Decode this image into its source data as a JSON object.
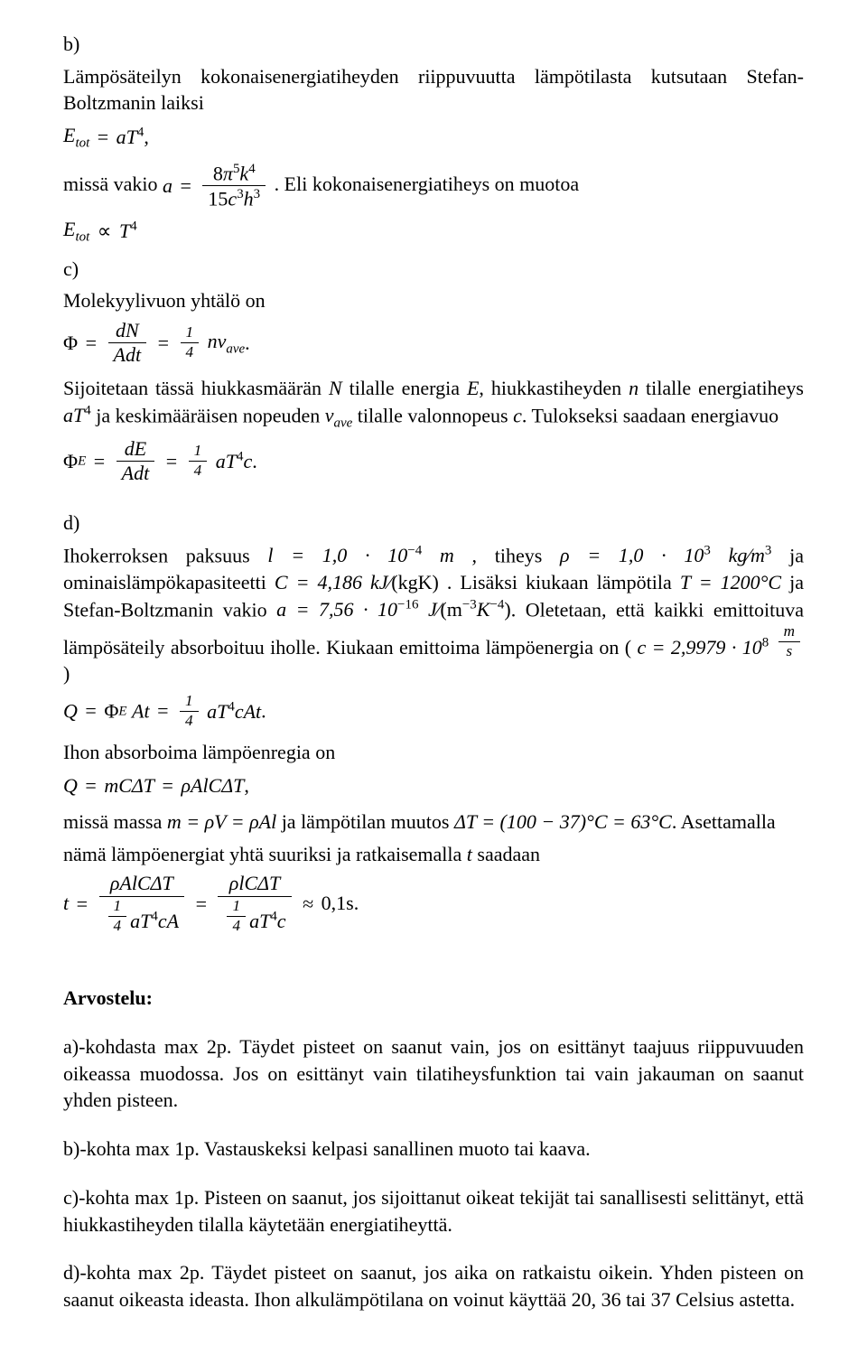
{
  "colors": {
    "background": "#ffffff",
    "text": "#000000"
  },
  "typography": {
    "font_family": "Times New Roman",
    "body_fontsize_pt": 16,
    "heading_weight": "bold"
  },
  "b": {
    "label": "b)",
    "para1": "Lämpösäteilyn kokonaisenergiatiheyden riippuvuutta lämpötilasta kutsutaan Stefan-Boltzmanin laiksi",
    "para2_pre": "missä vakio ",
    "para2_post": " . Eli kokonaisenergiatiheys on muotoa",
    "eq_Etot_aT4": {
      "lhs": "E",
      "lhs_sub": "tot",
      "eq": "=",
      "rhs_a": "aT",
      "rhs_exp": "4",
      "tail": ","
    },
    "eq_a": {
      "lhs": "a",
      "eq": "=",
      "num_coef": "8",
      "num_pi": "π",
      "num_pi_exp": "5",
      "num_k": "k",
      "num_k_exp": "4",
      "den_coef": "15",
      "den_c": "c",
      "den_c_exp": "3",
      "den_h": "h",
      "den_h_exp": "3"
    },
    "eq_Etot_propto": {
      "lhs": "E",
      "lhs_sub": "tot",
      "propto": "∝",
      "rhs": "T",
      "rhs_exp": "4"
    }
  },
  "c": {
    "label": "c)",
    "line1": "Molekyylivuon yhtälö on",
    "eq_phi": {
      "Phi": "Φ",
      "eq": "=",
      "num": "dN",
      "den_A": "A",
      "den_dt": "dt",
      "eq2": "=",
      "quarter_num": "1",
      "quarter_den": "4",
      "nv": "nv",
      "nv_sub": "ave",
      "tail": "."
    },
    "line2a": "Sijoitetaan tässä hiukkasmäärän ",
    "N": "N",
    "line2b": " tilalle energia ",
    "E": "E",
    "line2c": ", hiukkastiheyden ",
    "n": "n",
    "line2d": " tilalle energiatiheys ",
    "aT4_a": "aT",
    "aT4_exp": "4",
    "line3a": " ja keskimääräisen nopeuden ",
    "v": "v",
    "v_sub": "ave",
    "line3b": " tilalle valonnopeus ",
    "c_sym": "c",
    "line3c": ". Tulokseksi saadaan energiavuo",
    "eq_phiE": {
      "Phi": "Φ",
      "Phi_sub": "E",
      "eq": "=",
      "num": "dE",
      "den_A": "A",
      "den_dt": "dt",
      "eq2": "=",
      "quarter_num": "1",
      "quarter_den": "4",
      "aT": "aT",
      "exp4": "4",
      "c": "c",
      "tail": "."
    }
  },
  "d": {
    "label": "d)",
    "line1_a": "Ihokerroksen paksuus ",
    "l_eq": "l = 1,0 · 10",
    "l_exp": "−4",
    "l_unit": " m",
    "line1_b": " , tiheys ",
    "rho_eq": "ρ = 1,0 · 10",
    "rho_exp": "3",
    "rho_unit_a": " kg",
    "rho_slash": "⁄",
    "rho_unit_b": "m",
    "rho_unit_exp": "3",
    "line1_c": " ja ominaislämpökapasiteetti",
    "C_eq_a": "C = 4,186 kJ",
    "C_slash": "⁄",
    "C_eq_b": "(kgK)",
    "line2_a": " .  Lisäksi  kiukaan  lämpötila  ",
    "T_eq": "T = 1200°C",
    "line2_b": "  ja  Stefan-Boltzmanin  vakio",
    "a_eq": "a = 7,56 · 10",
    "a_exp": "−16",
    "a_unit_a": " J",
    "a_unit_slash": "⁄",
    "a_unit_b": "(m",
    "a_unit_exp1": "−3",
    "a_unit_c": "K",
    "a_unit_exp2": "−4",
    "a_unit_d": ")",
    "line3": ". Oletetaan, että kaikki emittoituva lämpösäteily absorboituu",
    "line4_a": "iholle. Kiukaan emittoima lämpöenergia on ( ",
    "c_eq": "c = 2,9979 · 10",
    "c_exp": "8",
    "c_unit_num": "m",
    "c_unit_den": "s",
    "line4_b": " )",
    "eq_Q": {
      "Q": "Q",
      "eq": "=",
      "Phi": "Φ",
      "Phi_sub": "E",
      "At": "At",
      "eq2": "=",
      "quarter_num": "1",
      "quarter_den": "4",
      "aT": "aT",
      "exp4": "4",
      "cAt": "cAt",
      "tail": "."
    },
    "line5": "Ihon absorboima lämpöenregia on",
    "eq_Q2": {
      "Q": "Q",
      "eq": "=",
      "mCdT": "mCΔT",
      "eq2": "=",
      "rhoAlCdT": "ρAlCΔT",
      "tail": ","
    },
    "line6_a": "missä massa ",
    "m_eq": "m = ρV = ρAl",
    "line6_b": " ja lämpötilan muutos ",
    "dT_eq": "ΔT = (100 − 37)°C = 63°C",
    "line6_c": ". Asettamalla",
    "line7": "nämä lämpöenergiat yhtä suuriksi ja ratkaisemalla ",
    "t_sym": "t",
    "line7b": " saadaan",
    "eq_t": {
      "t": "t",
      "eq": "=",
      "num1": "ρAlCΔT",
      "den1_q_num": "1",
      "den1_q_den": "4",
      "den1_rest_a": "aT",
      "den1_exp4": "4",
      "den1_rest_b": "cA",
      "eq2": "=",
      "num2": "ρlCΔT",
      "den2_q_num": "1",
      "den2_q_den": "4",
      "den2_rest_a": "aT",
      "den2_exp4": "4",
      "den2_rest_b": "c",
      "approx": "≈",
      "val": "0,1s",
      "tail": "."
    }
  },
  "grading": {
    "title": "Arvostelu:",
    "a": "a)-kohdasta max 2p. Täydet pisteet on saanut vain, jos on esittänyt taajuus riippuvuuden oikeassa muodossa. Jos on esittänyt vain tilatiheysfunktion tai vain jakauman on saanut yhden pisteen.",
    "b": "b)-kohta max 1p. Vastauskeksi kelpasi sanallinen muoto tai kaava.",
    "c": "c)-kohta max 1p. Pisteen on saanut, jos sijoittanut oikeat tekijät tai sanallisesti selittänyt, että hiukkastiheyden tilalla käytetään energiatiheyttä.",
    "d": "d)-kohta max 2p. Täydet pisteet on saanut, jos aika on ratkaistu oikein. Yhden pisteen on saanut oikeasta ideasta. Ihon alkulämpötilana on voinut käyttää 20, 36 tai 37 Celsius astetta."
  }
}
